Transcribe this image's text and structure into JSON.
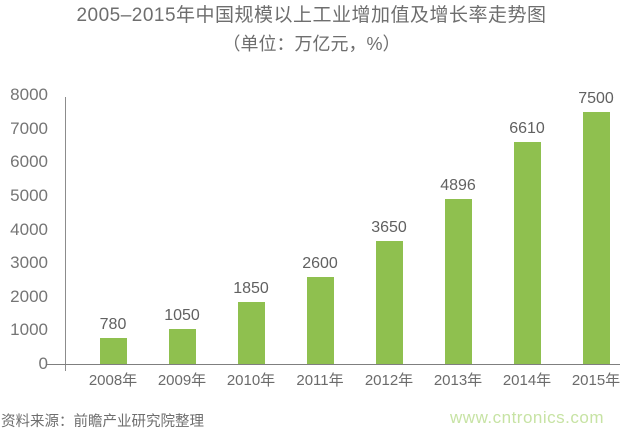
{
  "header": {
    "title": "2005–2015年中国规模以上工业增加值及增长率走势图",
    "subtitle": "（单位：万亿元，%）"
  },
  "chart_data": {
    "type": "bar",
    "title": "2005–2015年中国规模以上工业增加值及增长率走势图",
    "subtitle": "（单位：万亿元，%）",
    "categories": [
      "2008年",
      "2009年",
      "2010年",
      "2011年",
      "2012年",
      "2013年",
      "2014年",
      "2015年"
    ],
    "values": [
      780,
      1050,
      1850,
      2600,
      3650,
      4896,
      6610,
      7500
    ],
    "data_labels": [
      780,
      1050,
      1850,
      2600,
      3650,
      4896,
      6610,
      7500
    ],
    "xlabel": "",
    "ylabel": "",
    "ylim": [
      0,
      8000
    ],
    "yticks": [
      0,
      1000,
      2000,
      3000,
      4000,
      5000,
      6000,
      7000,
      8000
    ],
    "grid": false,
    "legend_position": "none",
    "bar_color": "#8fc04f"
  },
  "colors": {
    "bar": "#8fc04f",
    "watermark": "#c7e3a4",
    "text": "#6e6e6e",
    "axis": "#8c8c8c"
  },
  "footer": {
    "source": "资料来源：前瞻产业研究院整理",
    "watermark": "www.cntronics.com"
  }
}
